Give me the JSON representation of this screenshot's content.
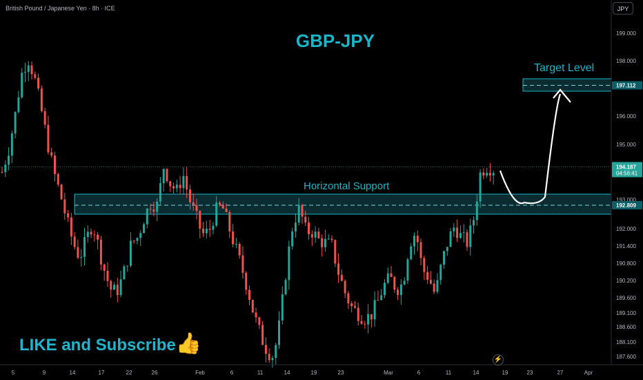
{
  "header": {
    "symbol_line": "British Pound / Japanese Yen · 8h · ICE",
    "currency_button": "JPY"
  },
  "annotations": {
    "title": "GBP-JPY",
    "horizontal_support": "Horizontal Support",
    "target_level": "Target Level",
    "like_subscribe": "LIKE and Subscribe"
  },
  "price_labels": {
    "last_price": "194.187",
    "countdown": "04:56:41",
    "target_price": "197.112",
    "support_price": "192.809"
  },
  "colors": {
    "background": "#000000",
    "up_candle": "#26a69a",
    "down_candle": "#ef5350",
    "accent": "#18b6c8",
    "zone_fill": "#0f3b40"
  },
  "chart_data": {
    "type": "candlestick",
    "symbol": "British Pound / Japanese Yen",
    "timeframe": "8h",
    "y_ticks": [
      199.0,
      198.0,
      197.0,
      196.0,
      195.0,
      194.0,
      193.0,
      192.0,
      191.4,
      190.8,
      190.2,
      189.6,
      189.1,
      188.6,
      188.1,
      187.6
    ],
    "y_tick_labels": [
      "199.000",
      "198.000",
      "",
      "196.000",
      "195.000",
      "",
      "193.000",
      "192.000",
      "191.400",
      "190.800",
      "190.200",
      "189.600",
      "189.100",
      "188.600",
      "188.100",
      "187.600"
    ],
    "x_tick_labels": [
      "5",
      "9",
      "14",
      "17",
      "22",
      "26",
      "Feb",
      "6",
      "11",
      "14",
      "19",
      "23",
      "Mar",
      "6",
      "11",
      "14",
      "19",
      "23",
      "27",
      "Apr"
    ],
    "last_price": 194.187,
    "support_zone": [
      192.5,
      193.2
    ],
    "support_level": 192.809,
    "target_zone": [
      196.9,
      197.35
    ],
    "target_level": 197.112,
    "close_path": [
      194.0,
      194.8,
      196.0,
      197.5,
      198.1,
      197.4,
      196.3,
      195.1,
      194.0,
      193.2,
      192.3,
      191.5,
      191.0,
      191.6,
      192.2,
      191.3,
      190.4,
      189.8,
      189.9,
      190.6,
      191.5,
      191.7,
      192.4,
      192.9,
      192.8,
      194.2,
      193.6,
      193.3,
      193.9,
      193.0,
      192.4,
      191.8,
      191.9,
      192.6,
      192.8,
      192.1,
      191.4,
      190.7,
      189.9,
      189.0,
      188.3,
      187.8,
      187.6,
      188.8,
      190.7,
      192.2,
      192.7,
      191.9,
      191.9,
      191.6,
      191.5,
      191.4,
      190.5,
      189.8,
      189.3,
      189.1,
      188.9,
      189.0,
      189.4,
      190.0,
      190.3,
      189.9,
      190.1,
      191.5,
      191.9,
      190.6,
      190.3,
      189.7,
      190.8,
      191.6,
      192.1,
      191.7,
      191.5,
      192.4,
      194.0,
      194.2,
      194.1
    ],
    "projection_path": [
      194.05,
      192.9,
      193.1,
      196.9
    ]
  }
}
